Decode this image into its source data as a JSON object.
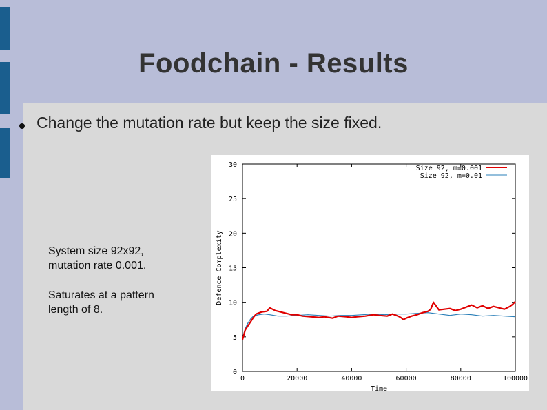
{
  "slide": {
    "title": "Foodchain - Results",
    "bullet": "Change the mutation rate but keep the size fixed."
  },
  "notes": {
    "line1": "System size 92x92,",
    "line2": "mutation rate 0.001.",
    "line3": "Saturates at a pattern",
    "line4": "length of 8."
  },
  "colors": {
    "background": "#b8bdd8",
    "content": "#d9d9d9",
    "accent_bar": "#1a5e8e"
  },
  "chart_data": {
    "type": "line",
    "xlabel": "Time",
    "ylabel": "Defence Complexity",
    "xlim": [
      0,
      100000
    ],
    "ylim": [
      0,
      30
    ],
    "xticks": [
      "0",
      "20000",
      "40000",
      "60000",
      "80000",
      "100000"
    ],
    "yticks": [
      "0",
      "5",
      "10",
      "15",
      "20",
      "25",
      "30"
    ],
    "grid": false,
    "legend": "top-right",
    "series": [
      {
        "name": "Size 92, m=0.001",
        "color": "#e00000",
        "x": [
          0,
          1000,
          2000,
          3000,
          4000,
          5000,
          7000,
          9000,
          10000,
          12000,
          15000,
          18000,
          20000,
          22000,
          25000,
          28000,
          30000,
          33000,
          35000,
          38000,
          40000,
          42000,
          45000,
          48000,
          50000,
          53000,
          55000,
          57000,
          58000,
          59000,
          60000,
          62000,
          64000,
          66000,
          68000,
          69000,
          70000,
          72000,
          74000,
          76000,
          78000,
          80000,
          82000,
          84000,
          86000,
          88000,
          90000,
          92000,
          94000,
          96000,
          98000,
          99000,
          100000
        ],
        "y": [
          4.6,
          6.0,
          6.6,
          7.2,
          7.8,
          8.3,
          8.6,
          8.7,
          9.2,
          8.8,
          8.5,
          8.2,
          8.2,
          8.0,
          7.9,
          7.8,
          7.9,
          7.7,
          8.0,
          7.9,
          7.8,
          7.9,
          8.0,
          8.2,
          8.1,
          8.0,
          8.3,
          8.0,
          7.8,
          7.5,
          7.7,
          8.0,
          8.2,
          8.5,
          8.7,
          9.0,
          10.0,
          8.9,
          9.0,
          9.1,
          8.8,
          9.0,
          9.3,
          9.6,
          9.2,
          9.5,
          9.1,
          9.4,
          9.2,
          9.0,
          9.4,
          9.7,
          10.1
        ]
      },
      {
        "name": "Size 92, m=0.01",
        "color": "#2a7fb8",
        "x": [
          0,
          1000,
          2000,
          3000,
          4000,
          6000,
          8000,
          10000,
          13000,
          16000,
          20000,
          24000,
          28000,
          32000,
          36000,
          40000,
          44000,
          48000,
          52000,
          56000,
          60000,
          64000,
          68000,
          72000,
          76000,
          80000,
          84000,
          88000,
          92000,
          96000,
          100000
        ],
        "y": [
          4.8,
          6.2,
          7.0,
          7.6,
          8.0,
          8.2,
          8.3,
          8.2,
          8.0,
          8.0,
          8.1,
          8.2,
          8.1,
          8.0,
          8.1,
          8.1,
          8.2,
          8.3,
          8.2,
          8.3,
          8.3,
          8.4,
          8.5,
          8.3,
          8.1,
          8.3,
          8.2,
          8.0,
          8.1,
          8.0,
          7.9
        ]
      }
    ]
  }
}
